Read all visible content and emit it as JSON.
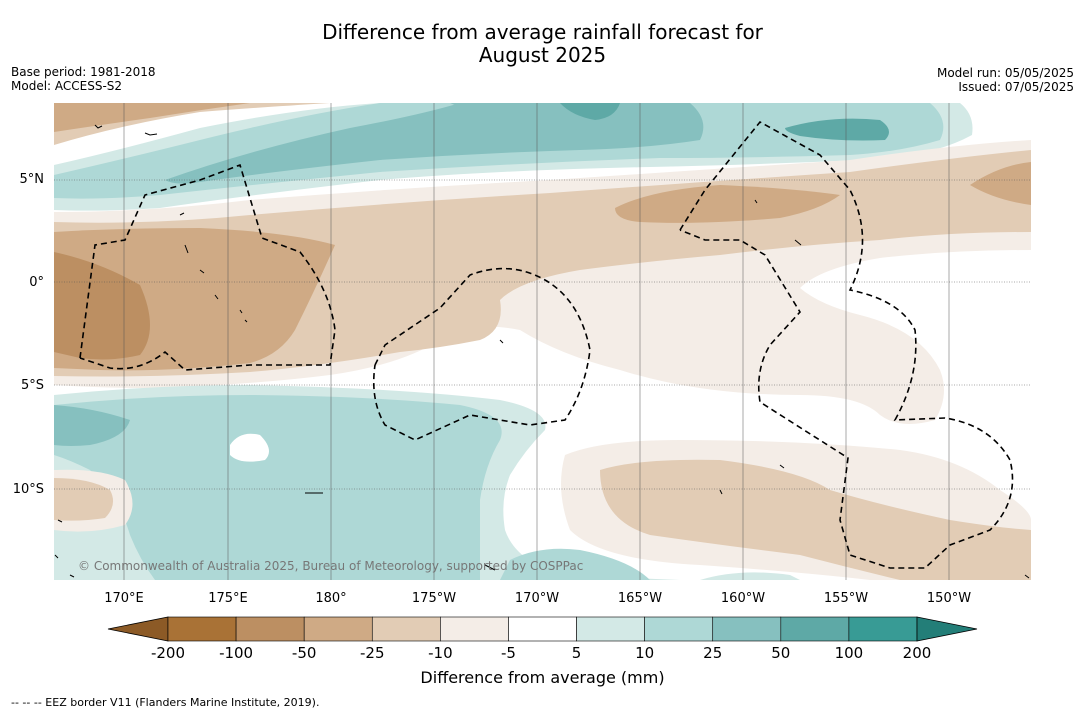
{
  "header": {
    "title_line1": "Difference from average rainfall forecast for",
    "title_line2": "August 2025",
    "base_period": "Base period: 1981-2018",
    "model": "Model: ACCESS-S2",
    "model_run": "Model run: 05/05/2025",
    "issued": "Issued: 07/05/2025"
  },
  "map": {
    "lat_labels": [
      "5°N",
      "0°",
      "5°S",
      "10°S"
    ],
    "lon_labels": [
      "170°E",
      "175°E",
      "180°",
      "175°W",
      "170°W",
      "165°W",
      "160°W",
      "155°W",
      "150°W"
    ],
    "copyright": "© Commonwealth of Australia 2025, Bureau of Meteorology, supported by COSPPac",
    "border_color": "#000000"
  },
  "colorbar": {
    "ticks": [
      "-200",
      "-100",
      "-50",
      "-25",
      "-10",
      "-5",
      "5",
      "10",
      "25",
      "50",
      "100",
      "200"
    ],
    "colors": [
      "#a97236",
      "#bc8f62",
      "#cfaa85",
      "#e2ccb5",
      "#f4ede7",
      "#ffffff",
      "#d3e9e6",
      "#aed8d6",
      "#86c0bf",
      "#5ea9a6",
      "#389b95"
    ],
    "low_extend_color": "#8c5a26",
    "high_extend_color": "#237e78",
    "label": "Difference from average (mm)"
  },
  "footnote": "--  --  -- EEZ border V11 (Flanders Marine Institute, 2019)."
}
